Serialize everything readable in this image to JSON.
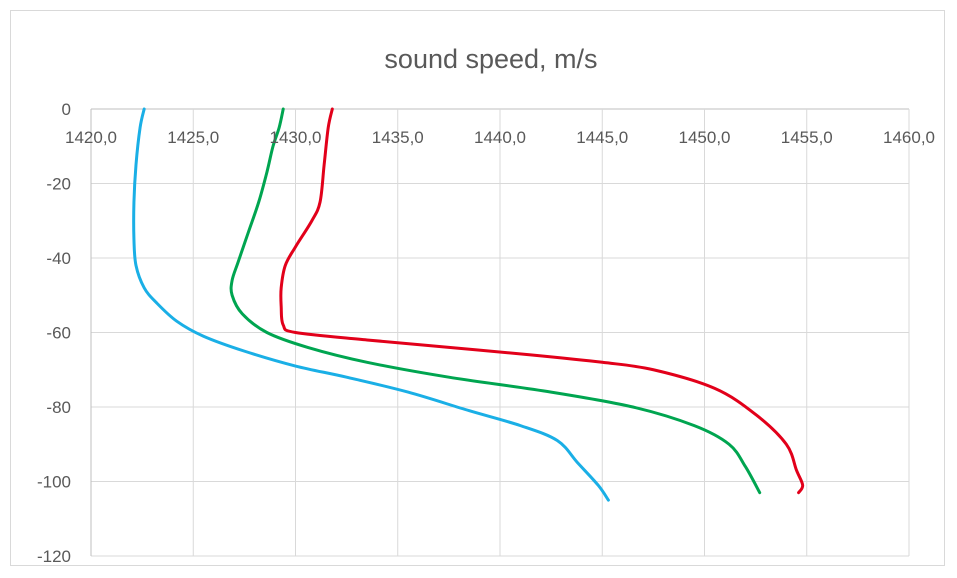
{
  "chart_data": {
    "type": "line",
    "title": "sound speed, m/s",
    "xlabel": "",
    "ylabel": "",
    "xlim": [
      1420,
      1460
    ],
    "ylim": [
      -120,
      0
    ],
    "x_ticks": [
      1420,
      1425,
      1430,
      1435,
      1440,
      1445,
      1450,
      1455,
      1460
    ],
    "x_tick_labels": [
      "1420,0",
      "1425,0",
      "1430,0",
      "1435,0",
      "1440,0",
      "1445,0",
      "1450,0",
      "1455,0",
      "1460,0"
    ],
    "y_ticks": [
      0,
      -20,
      -40,
      -60,
      -80,
      -100,
      -120
    ],
    "y_tick_labels": [
      "0",
      "-20",
      "-40",
      "-60",
      "-80",
      "-100",
      "-120"
    ],
    "x_axis_position": "top",
    "grid": true,
    "legend": "none",
    "series": [
      {
        "color": "#1AAFE6",
        "points": [
          [
            1422.6,
            0
          ],
          [
            1422.4,
            -5
          ],
          [
            1422.2,
            -15
          ],
          [
            1422.1,
            -25
          ],
          [
            1422.1,
            -35
          ],
          [
            1422.2,
            -42
          ],
          [
            1422.6,
            -48
          ],
          [
            1423.2,
            -52
          ],
          [
            1424.2,
            -57
          ],
          [
            1425.5,
            -61
          ],
          [
            1427.5,
            -65
          ],
          [
            1430.0,
            -69
          ],
          [
            1432.5,
            -72
          ],
          [
            1435.5,
            -76
          ],
          [
            1438.5,
            -81
          ],
          [
            1441.0,
            -85
          ],
          [
            1442.8,
            -89
          ],
          [
            1443.8,
            -95
          ],
          [
            1444.8,
            -101
          ],
          [
            1445.3,
            -105
          ]
        ]
      },
      {
        "color": "#00A550",
        "points": [
          [
            1429.4,
            0
          ],
          [
            1429.2,
            -5
          ],
          [
            1428.9,
            -10
          ],
          [
            1428.6,
            -17
          ],
          [
            1428.2,
            -25
          ],
          [
            1427.7,
            -33
          ],
          [
            1427.2,
            -41
          ],
          [
            1426.9,
            -46
          ],
          [
            1426.9,
            -50
          ],
          [
            1427.4,
            -55
          ],
          [
            1428.6,
            -60
          ],
          [
            1430.6,
            -64
          ],
          [
            1433.5,
            -68
          ],
          [
            1437.5,
            -72
          ],
          [
            1442.5,
            -76
          ],
          [
            1446.5,
            -80
          ],
          [
            1449.5,
            -85
          ],
          [
            1451.2,
            -90
          ],
          [
            1452.0,
            -96
          ],
          [
            1452.7,
            -103
          ]
        ]
      },
      {
        "color": "#E2001A",
        "points": [
          [
            1431.8,
            0
          ],
          [
            1431.6,
            -5
          ],
          [
            1431.4,
            -15
          ],
          [
            1431.2,
            -25
          ],
          [
            1430.8,
            -30
          ],
          [
            1430.0,
            -37
          ],
          [
            1429.5,
            -42
          ],
          [
            1429.3,
            -48
          ],
          [
            1429.3,
            -53
          ],
          [
            1429.4,
            -58
          ],
          [
            1430.0,
            -60
          ],
          [
            1433.5,
            -62
          ],
          [
            1437.5,
            -64
          ],
          [
            1441.5,
            -66
          ],
          [
            1445.0,
            -68
          ],
          [
            1447.5,
            -70
          ],
          [
            1450.5,
            -75
          ],
          [
            1452.5,
            -82
          ],
          [
            1454.0,
            -90
          ],
          [
            1454.5,
            -97
          ],
          [
            1454.8,
            -101
          ],
          [
            1454.6,
            -103
          ]
        ]
      }
    ]
  }
}
